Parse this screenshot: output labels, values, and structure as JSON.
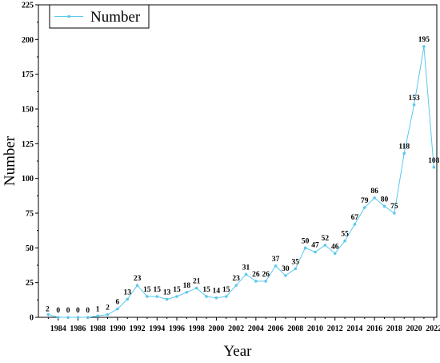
{
  "chart_data": {
    "type": "line",
    "xlabel": "Year",
    "ylabel": "Number",
    "xlim": [
      1982,
      2022.3
    ],
    "ylim": [
      0,
      225
    ],
    "yticks": [
      0,
      25,
      50,
      75,
      100,
      125,
      150,
      175,
      200,
      225
    ],
    "xticks": [
      1984,
      1986,
      1988,
      1990,
      1992,
      1994,
      1996,
      1998,
      2000,
      2002,
      2004,
      2006,
      2008,
      2010,
      2012,
      2014,
      2016,
      2018,
      2020,
      2022
    ],
    "grid": false,
    "legend_position": "top-left",
    "series_color": "#5bc8ec",
    "series": [
      {
        "name": "Number",
        "x": [
          1983,
          1984,
          1985,
          1986,
          1987,
          1988,
          1989,
          1990,
          1991,
          1992,
          1993,
          1994,
          1995,
          1996,
          1997,
          1998,
          1999,
          2000,
          2001,
          2002,
          2003,
          2004,
          2005,
          2006,
          2007,
          2008,
          2009,
          2010,
          2011,
          2012,
          2013,
          2014,
          2015,
          2016,
          2017,
          2018,
          2019,
          2020,
          2021,
          2022
        ],
        "values": [
          2,
          0,
          0,
          0,
          0,
          1,
          2,
          6,
          13,
          23,
          15,
          15,
          13,
          15,
          18,
          21,
          15,
          14,
          15,
          23,
          31,
          26,
          26,
          37,
          30,
          35,
          50,
          47,
          52,
          46,
          55,
          67,
          79,
          86,
          80,
          75,
          118,
          153,
          195,
          108
        ]
      }
    ]
  }
}
